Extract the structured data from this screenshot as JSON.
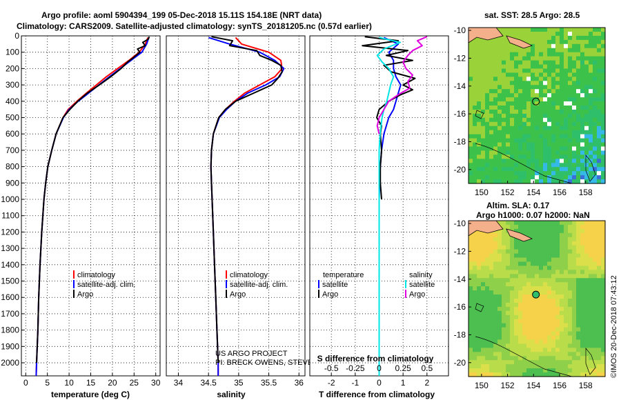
{
  "header": {
    "line1": "Argo profile: aoml 5904394_199 05-Dec-2018 15.11S 154.18E (NRT data)",
    "line2": "Climatology: CARS2009. Satellite-adjusted climatology: synTS_20181205.nc (0.57d earlier)"
  },
  "credits": {
    "project": "US ARGO PROJECT",
    "pi": "PI: BRECK OWENS, STEVE JAYNE, P.E. ROBBINS",
    "stamp": "©IMOS 20-Dec-2018 07:43:12"
  },
  "colors": {
    "climatology": "#ff0000",
    "satellite": "#0000ff",
    "argo": "#000000",
    "sat_salinity": "#00e5e5",
    "argo_salinity": "#e000e0"
  },
  "chart_data": [
    {
      "type": "line",
      "id": "temperature",
      "xlabel": "temperature (deg C)",
      "ylabel": "",
      "xlim": [
        -1,
        31
      ],
      "ylim": [
        2080,
        0
      ],
      "xticks": [
        0,
        5,
        10,
        15,
        20,
        25,
        30
      ],
      "yticks": [
        0,
        100,
        200,
        300,
        400,
        500,
        600,
        700,
        800,
        900,
        1000,
        1100,
        1200,
        1300,
        1400,
        1500,
        1600,
        1700,
        1800,
        1900,
        2000
      ],
      "legend": [
        "climatology",
        "satellite-adj. clim.",
        "Argo"
      ],
      "series": [
        {
          "name": "climatology",
          "depth": [
            10,
            50,
            100,
            150,
            200,
            250,
            300,
            350,
            400,
            450,
            500,
            600,
            700,
            800,
            900,
            1000,
            1200,
            1400,
            1600,
            1800,
            2000,
            2080
          ],
          "values": [
            28.2,
            27.6,
            26.2,
            23.8,
            21.2,
            18.6,
            16.3,
            14.0,
            11.8,
            9.8,
            8.6,
            7.0,
            6.0,
            5.1,
            4.6,
            4.2,
            3.7,
            3.3,
            3.0,
            2.8,
            2.5,
            2.4
          ]
        },
        {
          "name": "satellite-adj. clim.",
          "depth": [
            10,
            50,
            100,
            150,
            200,
            250,
            300,
            350,
            400,
            450,
            500,
            600,
            700,
            800,
            900,
            1000,
            1200,
            1400,
            1600,
            1800,
            2000,
            2080
          ],
          "values": [
            28.4,
            27.9,
            26.8,
            24.3,
            21.8,
            19.3,
            16.9,
            14.5,
            12.1,
            10.0,
            8.7,
            7.0,
            6.0,
            5.1,
            4.6,
            4.2,
            3.7,
            3.3,
            3.0,
            2.8,
            2.5,
            2.4
          ]
        },
        {
          "name": "Argo",
          "depth": [
            5,
            20,
            40,
            60,
            80,
            100,
            130,
            160,
            200,
            250,
            300,
            350,
            400,
            450,
            500,
            600,
            700,
            800,
            900,
            1000,
            1200,
            1400,
            1600,
            1800,
            2000
          ],
          "values": [
            28.5,
            28.3,
            27.0,
            27.6,
            25.8,
            26.3,
            25.0,
            23.5,
            22.0,
            19.6,
            17.0,
            14.2,
            12.0,
            10.2,
            8.6,
            7.0,
            6.0,
            5.1,
            4.6,
            4.2,
            3.7,
            3.3,
            3.0,
            2.8,
            2.5
          ]
        }
      ]
    },
    {
      "type": "line",
      "id": "salinity",
      "xlabel": "salinity",
      "ylabel": "",
      "xlim": [
        33.8,
        36.1
      ],
      "ylim": [
        2080,
        0
      ],
      "xticks": [
        34,
        34.5,
        35,
        35.5,
        36
      ],
      "legend": [
        "climatology",
        "satellite-adj. clim.",
        "Argo"
      ],
      "series": [
        {
          "name": "climatology",
          "depth": [
            10,
            50,
            100,
            150,
            200,
            250,
            300,
            350,
            400,
            450,
            500,
            600,
            700,
            800,
            900,
            1000,
            1200,
            1400,
            1600,
            1800,
            2000,
            2080
          ],
          "values": [
            34.95,
            35.05,
            35.5,
            35.7,
            35.72,
            35.6,
            35.35,
            35.1,
            34.93,
            34.78,
            34.67,
            34.58,
            34.55,
            34.54,
            34.55,
            34.56,
            34.58,
            34.6,
            34.62,
            34.64,
            34.66,
            34.66
          ]
        },
        {
          "name": "satellite-adj. clim.",
          "depth": [
            10,
            50,
            100,
            150,
            200,
            250,
            300,
            350,
            400,
            450,
            500,
            600,
            700,
            800,
            900,
            1000,
            1200,
            1400,
            1600,
            1800,
            2000,
            2080
          ],
          "values": [
            34.5,
            34.85,
            35.35,
            35.6,
            35.75,
            35.68,
            35.45,
            35.15,
            34.95,
            34.8,
            34.68,
            34.58,
            34.55,
            34.54,
            34.55,
            34.56,
            34.58,
            34.6,
            34.62,
            34.64,
            34.66,
            34.66
          ]
        },
        {
          "name": "Argo",
          "depth": [
            5,
            30,
            60,
            90,
            120,
            150,
            180,
            220,
            260,
            300,
            350,
            400,
            450,
            500,
            600,
            700,
            800,
            900,
            1000,
            1200,
            1400,
            1600,
            1800,
            2000
          ],
          "values": [
            34.55,
            34.9,
            34.85,
            35.3,
            35.35,
            35.55,
            35.7,
            35.72,
            35.65,
            35.55,
            35.25,
            34.95,
            34.78,
            34.67,
            34.58,
            34.55,
            34.54,
            34.55,
            34.56,
            34.58,
            34.6,
            34.62,
            34.64,
            34.66
          ]
        }
      ]
    },
    {
      "type": "line",
      "id": "difference",
      "xlabel": "T difference from climatology",
      "xlabel2": "S difference from climatology",
      "xlim": [
        -2.9,
        2.9
      ],
      "ylim": [
        2080,
        0
      ],
      "xticks": [
        -2,
        -1,
        0,
        1,
        2
      ],
      "xticks_s": [
        "-0.5",
        "-0.25",
        "0",
        "0.25",
        "0.5"
      ],
      "legend_left_title": "temperature",
      "legend_right_title": "salinity",
      "legend_left": [
        "satellite",
        "Argo"
      ],
      "legend_right": [
        "satellite",
        "Argo"
      ],
      "series": [
        {
          "name": "T satellite",
          "depth": [
            10,
            50,
            100,
            150,
            200,
            250,
            300,
            350,
            400,
            450,
            500,
            600,
            700,
            800,
            900,
            1000,
            1200,
            1500,
            1800,
            2080
          ],
          "values": [
            0.2,
            0.8,
            0.4,
            0.6,
            0.6,
            0.7,
            0.9,
            0.8,
            0.7,
            0.6,
            0.4,
            0.2,
            0.1,
            0.05,
            0.02,
            0.0,
            0.0,
            0.0,
            0.0,
            0.0
          ]
        },
        {
          "name": "T Argo",
          "depth": [
            5,
            30,
            60,
            90,
            120,
            150,
            180,
            220,
            260,
            300,
            330,
            360,
            400,
            450,
            500,
            550,
            600,
            700,
            800,
            900,
            1000
          ],
          "values": [
            -0.6,
            0.8,
            -0.7,
            1.2,
            0.3,
            1.4,
            0.2,
            0.5,
            1.5,
            1.0,
            1.4,
            0.9,
            0.4,
            0.0,
            -0.1,
            0.1,
            0.05,
            0.1,
            0.05,
            0.05,
            0.1
          ]
        },
        {
          "name": "S satellite",
          "depth": [
            10,
            40,
            80,
            120,
            160,
            200,
            250,
            300,
            350,
            400,
            450,
            500,
            600,
            700,
            800,
            900,
            1000,
            1500,
            2080
          ],
          "values": [
            0.0,
            0.22,
            0.05,
            -0.02,
            0.03,
            0.1,
            0.15,
            0.12,
            0.1,
            0.08,
            0.05,
            0.03,
            0.01,
            0.0,
            0.0,
            0.0,
            0.0,
            0.0,
            0.0
          ]
        },
        {
          "name": "S Argo",
          "depth": [
            5,
            30,
            60,
            90,
            120,
            160,
            200,
            240,
            280,
            320,
            360,
            400,
            450,
            500,
            550,
            600
          ],
          "values": [
            0.5,
            0.4,
            0.45,
            0.35,
            0.3,
            0.25,
            0.28,
            0.35,
            0.3,
            0.32,
            0.2,
            0.1,
            0.05,
            0.0,
            -0.02,
            0.0
          ]
        }
      ]
    },
    {
      "type": "heatmap",
      "id": "sst-map",
      "title": "sat. SST: 28.5 Argo: 28.5",
      "xlim": [
        149,
        159.5
      ],
      "ylim": [
        -21,
        -9.8
      ],
      "xticks": [
        150,
        152,
        154,
        156,
        158
      ],
      "yticks": [
        -10,
        -12,
        -14,
        -16,
        -18,
        -20
      ],
      "argo_position": [
        154.18,
        -15.11
      ]
    },
    {
      "type": "heatmap",
      "id": "sla-map",
      "title1": "Altim. SLA: 0.17",
      "title2": "Argo h1000: 0.07 h2000: NaN",
      "xlim": [
        149,
        159.5
      ],
      "ylim": [
        -21,
        -9.8
      ],
      "xticks": [
        150,
        152,
        154,
        156,
        158
      ],
      "yticks": [
        -10,
        -12,
        -14,
        -16,
        -18,
        -20
      ],
      "argo_position": [
        154.18,
        -15.11
      ]
    }
  ]
}
